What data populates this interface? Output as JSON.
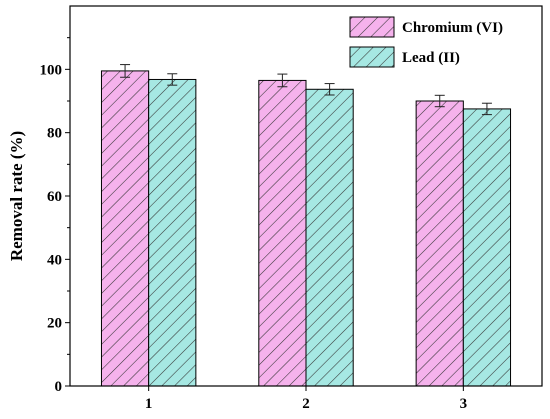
{
  "chart_data": {
    "type": "bar",
    "categories": [
      "1",
      "2",
      "3"
    ],
    "series": [
      {
        "name": "Chromium (VI)",
        "values": [
          99.5,
          96.5,
          90.0
        ],
        "errors": [
          2.0,
          2.0,
          1.8
        ],
        "color": "#f5b2ec",
        "hatch_color": "#333333"
      },
      {
        "name": "Lead (II)",
        "values": [
          96.8,
          93.7,
          87.5
        ],
        "errors": [
          1.8,
          1.8,
          1.8
        ],
        "color": "#a6e8e3",
        "hatch_color": "#333333"
      }
    ],
    "xlabel": "",
    "ylabel": "Removal rate (%)",
    "ylim": [
      0,
      120
    ],
    "yticks": [
      "0",
      "20",
      "40",
      "60",
      "80",
      "100"
    ],
    "grid": false,
    "legend_position": "top-right"
  }
}
